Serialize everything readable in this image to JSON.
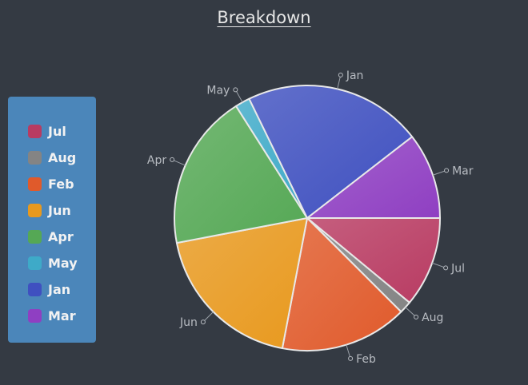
{
  "chart_data": {
    "type": "pie",
    "title": "Breakdown",
    "legend_position": "left",
    "slices": [
      {
        "label": "Jul",
        "value": 11.0,
        "color": "#b83b62"
      },
      {
        "label": "Aug",
        "value": 1.5,
        "color": "#848484"
      },
      {
        "label": "Feb",
        "value": 15.5,
        "color": "#e05a2b"
      },
      {
        "label": "Jun",
        "value": 19.0,
        "color": "#e8991e"
      },
      {
        "label": "Apr",
        "value": 19.0,
        "color": "#55a855"
      },
      {
        "label": "May",
        "value": 1.8,
        "color": "#3eaac8"
      },
      {
        "label": "Jan",
        "value": 21.7,
        "color": "#3f50c0"
      },
      {
        "label": "Mar",
        "value": 10.5,
        "color": "#8f3fc2"
      }
    ]
  }
}
